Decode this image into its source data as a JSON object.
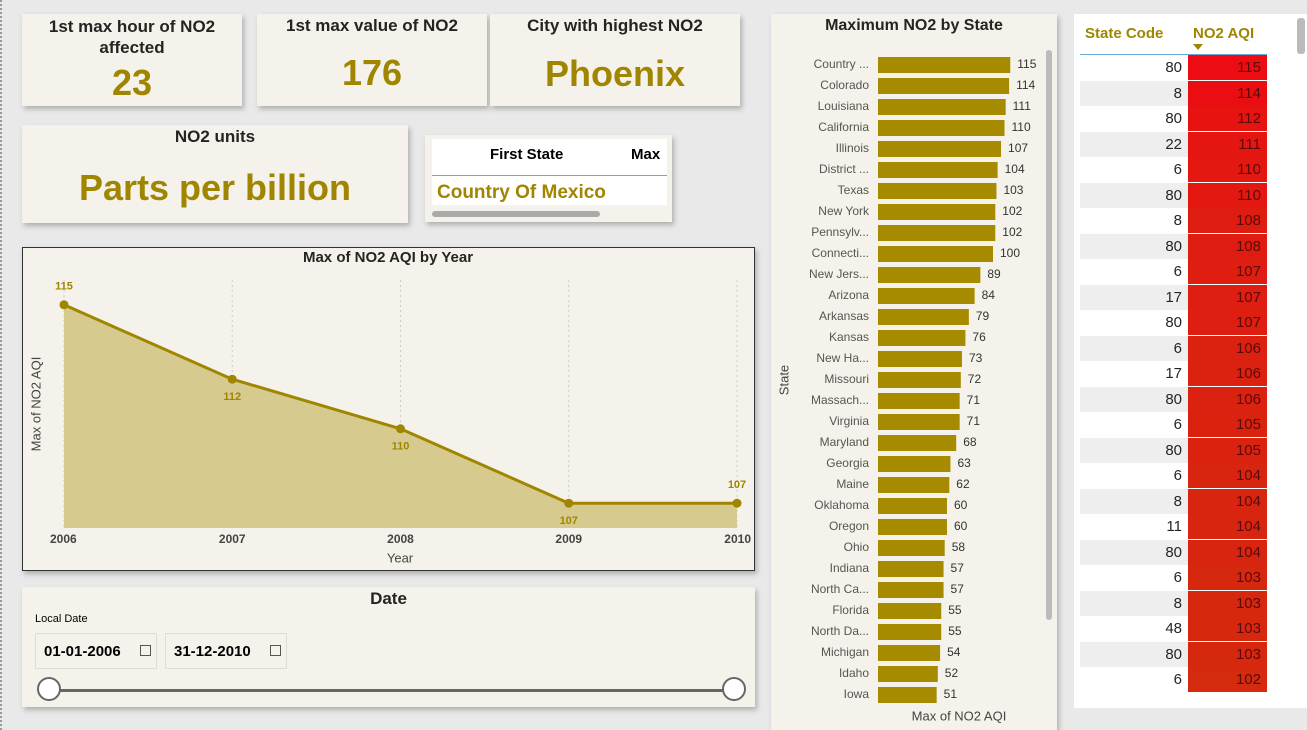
{
  "cards": [
    {
      "title": "1st max hour of NO2 affected",
      "value": 23
    },
    {
      "title": "1st max value of NO2",
      "value": 176
    },
    {
      "title": "City with highest NO2",
      "value": "Phoenix"
    },
    {
      "title": "NO2 units",
      "value": "Parts per billion"
    }
  ],
  "first_state_table": {
    "columns": [
      "First State",
      "Max"
    ],
    "rows": [
      [
        "Country Of Mexico"
      ]
    ]
  },
  "chart_data": [
    {
      "type": "line",
      "title": "Max of NO2 AQI by Year",
      "x": [
        2006,
        2007,
        2008,
        2009,
        2010
      ],
      "values": [
        115,
        112,
        110,
        107,
        107
      ],
      "xlabel": "Year",
      "ylabel": "Max of NO2 AQI",
      "xlim": [
        2006,
        2010
      ],
      "xticks": [
        2006,
        2007,
        2008,
        2009,
        2010
      ],
      "ylim": [
        106,
        116
      ],
      "color": "#a08600",
      "area_color": "#d6ca8f",
      "grid": true
    },
    {
      "type": "bar",
      "orientation": "horizontal",
      "title": "Maximum NO2 by State",
      "categories": [
        "Country ...",
        "Colorado",
        "Louisiana",
        "California",
        "Illinois",
        "District ...",
        "Texas",
        "New York",
        "Pennsylv...",
        "Connecti...",
        "New Jers...",
        "Arizona",
        "Arkansas",
        "Kansas",
        "New Ha...",
        "Missouri",
        "Massach...",
        "Virginia",
        "Maryland",
        "Georgia",
        "Maine",
        "Oklahoma",
        "Oregon",
        "Ohio",
        "Indiana",
        "North Ca...",
        "Florida",
        "North Da...",
        "Michigan",
        "Idaho",
        "Iowa"
      ],
      "values": [
        115,
        114,
        111,
        110,
        107,
        104,
        103,
        102,
        102,
        100,
        89,
        84,
        79,
        76,
        73,
        72,
        71,
        71,
        68,
        63,
        62,
        60,
        60,
        58,
        57,
        57,
        55,
        55,
        54,
        52,
        51
      ],
      "xlabel": "Max of NO2 AQI",
      "ylabel": "State",
      "xlim": [
        0,
        120
      ],
      "color": "#a68a00"
    }
  ],
  "date_slicer": {
    "title": "Date",
    "field": "Local Date",
    "start": "01-01-2006",
    "end": "31-12-2010"
  },
  "state_table": {
    "columns": [
      "State Code",
      "NO2 AQI"
    ],
    "rows": [
      [
        80,
        115
      ],
      [
        8,
        114
      ],
      [
        80,
        112
      ],
      [
        22,
        111
      ],
      [
        6,
        110
      ],
      [
        80,
        110
      ],
      [
        8,
        108
      ],
      [
        80,
        108
      ],
      [
        6,
        107
      ],
      [
        17,
        107
      ],
      [
        80,
        107
      ],
      [
        6,
        106
      ],
      [
        17,
        106
      ],
      [
        80,
        106
      ],
      [
        6,
        105
      ],
      [
        80,
        105
      ],
      [
        6,
        104
      ],
      [
        8,
        104
      ],
      [
        11,
        104
      ],
      [
        80,
        104
      ],
      [
        6,
        103
      ],
      [
        8,
        103
      ],
      [
        48,
        103
      ],
      [
        80,
        103
      ],
      [
        6,
        102
      ]
    ]
  }
}
